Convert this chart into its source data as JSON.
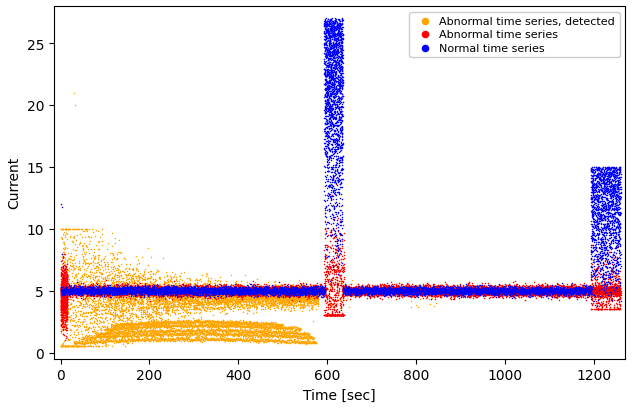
{
  "title": "",
  "xlabel": "Time [sec]",
  "ylabel": "Current",
  "xlim": [
    -15,
    1270
  ],
  "ylim": [
    -0.5,
    28
  ],
  "xticks": [
    0,
    200,
    400,
    600,
    800,
    1000,
    1200
  ],
  "yticks": [
    0,
    5,
    10,
    15,
    20,
    25
  ],
  "legend_labels": [
    "Normal time series",
    "Abnormal time series",
    "Abnormal time series, detected"
  ],
  "colors": {
    "normal": "#0000ff",
    "abnormal": "#ff0000",
    "detected": "#ffa500"
  },
  "marker_size": 1.2,
  "figsize": [
    6.32,
    4.1
  ],
  "dpi": 100
}
